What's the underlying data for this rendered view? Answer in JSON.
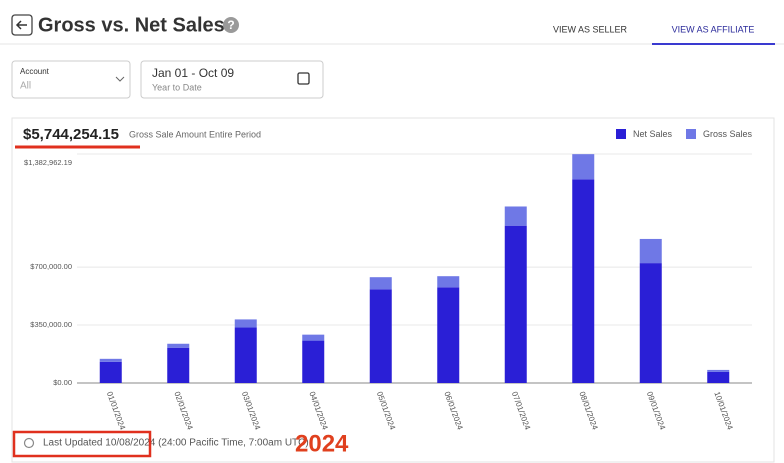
{
  "header": {
    "title": "Gross vs. Net Sales",
    "help": "?",
    "tabs": [
      "VIEW AS SELLER",
      "VIEW AS AFFILIATE"
    ]
  },
  "filters": {
    "account_label": "Account",
    "account_value": "All",
    "date_range": "Jan 01 - Oct 09",
    "date_preset": "Year to Date"
  },
  "summary": {
    "total": "$5,744,254.15",
    "total_label": "Gross Sale Amount Entire Period"
  },
  "chart_data": {
    "type": "stacked-bar",
    "categories": [
      "01/01/2024",
      "02/01/2024",
      "03/01/2024",
      "04/01/2024",
      "05/01/2024",
      "06/01/2024",
      "07/01/2024",
      "08/01/2024",
      "09/01/2024",
      "10/01/2024"
    ],
    "series": [
      {
        "name": "Net Sales",
        "color": "#2a1fd6",
        "values": [
          128000,
          213000,
          335000,
          256000,
          566000,
          578000,
          950000,
          1230000,
          724000,
          67000
        ]
      },
      {
        "name": "Gross Sales",
        "color": "#6f78e6",
        "values": [
          18000,
          24000,
          49000,
          36000,
          73000,
          67000,
          116000,
          152000,
          146000,
          12000
        ]
      }
    ],
    "ylim": [
      0,
      1382962.19
    ],
    "yticks": [
      {
        "value": 0,
        "label": "$0.00"
      },
      {
        "value": 350000,
        "label": "$350,000.00"
      },
      {
        "value": 700000,
        "label": "$700,000.00"
      },
      {
        "value": 1382962.19,
        "label": "$1,382,962.19"
      }
    ],
    "grid": true,
    "legend": "top-right"
  },
  "footer": {
    "last_updated": "Last Updated 10/08/2024 (24:00 Pacific Time, 7:00am UTC)",
    "annotation": "2024"
  }
}
